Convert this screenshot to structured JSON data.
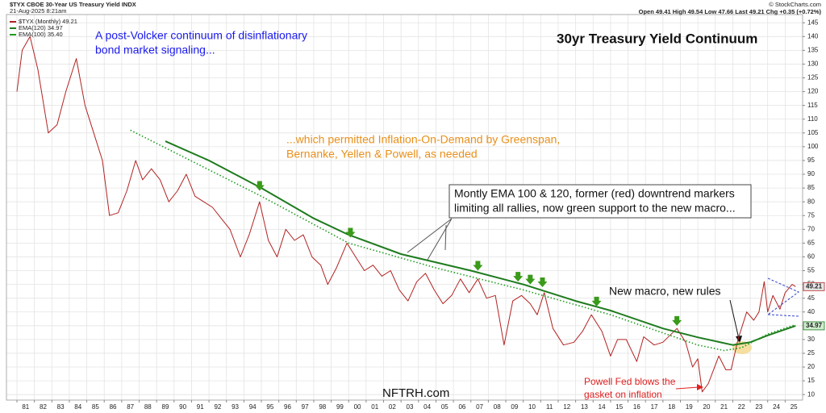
{
  "header": {
    "symbol": "$TYX CBOE 30-Year US Treasury Yield INDX",
    "date": "21-Aug-2025 8:21am",
    "quote": "Open 49.41 High 49.54 Low 47.66 Last 49.21 Chg +0.35 (+0.72%)",
    "credit": "© StockCharts.com"
  },
  "chart_data": {
    "type": "line",
    "title": "30yr Treasury Yield Continuum",
    "annotations": {
      "volcker": [
        "A post-Volcker continuum of disinflationary",
        "bond market signaling..."
      ],
      "greenspan": [
        "...which permitted Inflation-On-Demand by Greenspan,",
        "Bernanke, Yellen & Powell, as needed"
      ],
      "ema_box": [
        "Montly EMA 100 & 120, former (red) downtrend markers",
        "limiting all rallies, now green support to the new macro..."
      ],
      "new_macro": "New macro, new rules",
      "powell": [
        "Powell Fed blows the",
        "gasket on inflation"
      ],
      "watermark": "NFTRH.com"
    },
    "xlim": [
      1980.4,
      2026.0
    ],
    "xticks": [
      {
        "value": 1981,
        "label": "81"
      },
      {
        "value": 1982,
        "label": "82"
      },
      {
        "value": 1983,
        "label": "83"
      },
      {
        "value": 1984,
        "label": "84"
      },
      {
        "value": 1985,
        "label": "85"
      },
      {
        "value": 1986,
        "label": "86"
      },
      {
        "value": 1987,
        "label": "87"
      },
      {
        "value": 1988,
        "label": "88"
      },
      {
        "value": 1989,
        "label": "89"
      },
      {
        "value": 1990,
        "label": "90"
      },
      {
        "value": 1991,
        "label": "91"
      },
      {
        "value": 1992,
        "label": "92"
      },
      {
        "value": 1993,
        "label": "93"
      },
      {
        "value": 1994,
        "label": "94"
      },
      {
        "value": 1995,
        "label": "95"
      },
      {
        "value": 1996,
        "label": "96"
      },
      {
        "value": 1997,
        "label": "97"
      },
      {
        "value": 1998,
        "label": "98"
      },
      {
        "value": 1999,
        "label": "99"
      },
      {
        "value": 2000,
        "label": "00"
      },
      {
        "value": 2001,
        "label": "01"
      },
      {
        "value": 2002,
        "label": "02"
      },
      {
        "value": 2003,
        "label": "03"
      },
      {
        "value": 2004,
        "label": "04"
      },
      {
        "value": 2005,
        "label": "05"
      },
      {
        "value": 2006,
        "label": "06"
      },
      {
        "value": 2007,
        "label": "07"
      },
      {
        "value": 2008,
        "label": "08"
      },
      {
        "value": 2009,
        "label": "09"
      },
      {
        "value": 2010,
        "label": "10"
      },
      {
        "value": 2011,
        "label": "11"
      },
      {
        "value": 2012,
        "label": "12"
      },
      {
        "value": 2013,
        "label": "13"
      },
      {
        "value": 2014,
        "label": "14"
      },
      {
        "value": 2015,
        "label": "15"
      },
      {
        "value": 2016,
        "label": "16"
      },
      {
        "value": 2017,
        "label": "17"
      },
      {
        "value": 2018,
        "label": "18"
      },
      {
        "value": 2019,
        "label": "19"
      },
      {
        "value": 2020,
        "label": "20"
      },
      {
        "value": 2021,
        "label": "21"
      },
      {
        "value": 2022,
        "label": "22"
      },
      {
        "value": 2023,
        "label": "23"
      },
      {
        "value": 2024,
        "label": "24"
      },
      {
        "value": 2025,
        "label": "25"
      }
    ],
    "ylim": [
      8,
      148
    ],
    "yticks": [
      10,
      15,
      20,
      25,
      30,
      35,
      40,
      45,
      50,
      55,
      60,
      65,
      70,
      75,
      80,
      85,
      90,
      95,
      100,
      105,
      110,
      115,
      120,
      125,
      130,
      135,
      140,
      145
    ],
    "grid": true,
    "series": [
      {
        "name": "$TYX (Monthly) 49.21",
        "color": "#b22222",
        "style": "solid",
        "badge": true,
        "x": [
          1981.0,
          1981.3,
          1981.75,
          1982.2,
          1982.8,
          1983.3,
          1983.8,
          1984.4,
          1984.9,
          1985.4,
          1985.9,
          1986.3,
          1986.8,
          1987.3,
          1987.8,
          1988.2,
          1988.7,
          1989.2,
          1989.7,
          1990.2,
          1990.7,
          1991.2,
          1991.7,
          1992.2,
          1992.7,
          1993.2,
          1993.8,
          1994.3,
          1994.9,
          1995.4,
          1995.9,
          1996.4,
          1996.9,
          1997.4,
          1997.9,
          1998.4,
          1998.8,
          1999.3,
          1999.9,
          2000.4,
          2000.9,
          2001.4,
          2001.9,
          2002.4,
          2002.9,
          2003.4,
          2003.9,
          2004.4,
          2004.9,
          2005.4,
          2005.9,
          2006.4,
          2006.9,
          2007.4,
          2007.9,
          2008.4,
          2008.9,
          2009.4,
          2009.9,
          2010.4,
          2010.8,
          2011.2,
          2011.7,
          2012.3,
          2012.9,
          2013.4,
          2013.9,
          2014.5,
          2015.0,
          2015.4,
          2015.9,
          2016.5,
          2016.9,
          2017.5,
          2018.0,
          2018.8,
          2019.3,
          2019.7,
          2020.0,
          2020.25,
          2020.6,
          2021.2,
          2021.6,
          2021.9,
          2022.3,
          2022.8,
          2023.2,
          2023.5,
          2023.8,
          2024.0,
          2024.3,
          2024.7,
          2025.0,
          2025.4,
          2025.6
        ],
        "values": [
          120,
          135,
          140,
          128,
          105,
          108,
          120,
          132,
          115,
          105,
          95,
          75,
          76,
          84,
          95,
          88,
          92,
          88,
          80,
          84,
          90,
          82,
          80,
          78,
          74,
          70,
          60,
          68,
          80,
          66,
          60,
          70,
          66,
          68,
          60,
          57,
          50,
          56,
          65,
          60,
          55,
          57,
          53,
          55,
          48,
          44,
          51,
          54,
          48,
          43,
          46,
          52,
          47,
          52,
          45,
          46,
          28,
          44,
          46,
          43,
          39,
          47,
          34,
          28,
          29,
          33,
          39,
          33,
          24,
          30,
          30,
          22,
          31,
          28,
          29,
          34,
          29,
          20,
          23,
          11,
          14,
          24,
          19,
          19,
          30,
          40,
          37,
          40,
          51,
          40,
          46,
          41,
          47,
          50,
          49.21
        ]
      },
      {
        "name": "EMA(120) 34.97",
        "color": "#1e7b1e",
        "style": "solid",
        "badge": true,
        "x": [
          1989.5,
          1992,
          1995,
          1998,
          2000,
          2003,
          2007,
          2010,
          2013,
          2015,
          2018,
          2020,
          2022,
          2023,
          2024,
          2025.6
        ],
        "values": [
          102,
          95,
          85,
          74,
          68,
          61,
          55,
          50,
          44,
          40.5,
          34,
          30.8,
          28,
          29,
          31.5,
          34.97
        ]
      },
      {
        "name": "EMA(100) 35.40",
        "color": "#1e9b1e",
        "style": "dotted",
        "badge": false,
        "x": [
          1987.5,
          1990,
          1995,
          2000,
          2005,
          2010,
          2015,
          2020,
          2021.5,
          2022.5,
          2024,
          2025.6
        ],
        "values": [
          106,
          98,
          82,
          65,
          56,
          48,
          39,
          28,
          26,
          27,
          32,
          35.4
        ]
      }
    ],
    "markers": {
      "color": "#3a9a1a",
      "x": [
        1994.9,
        2000.1,
        2007.4,
        2009.7,
        2010.4,
        2011.1,
        2014.2,
        2018.8
      ],
      "values": [
        84,
        67,
        55,
        51,
        50,
        49,
        42,
        35
      ]
    }
  }
}
